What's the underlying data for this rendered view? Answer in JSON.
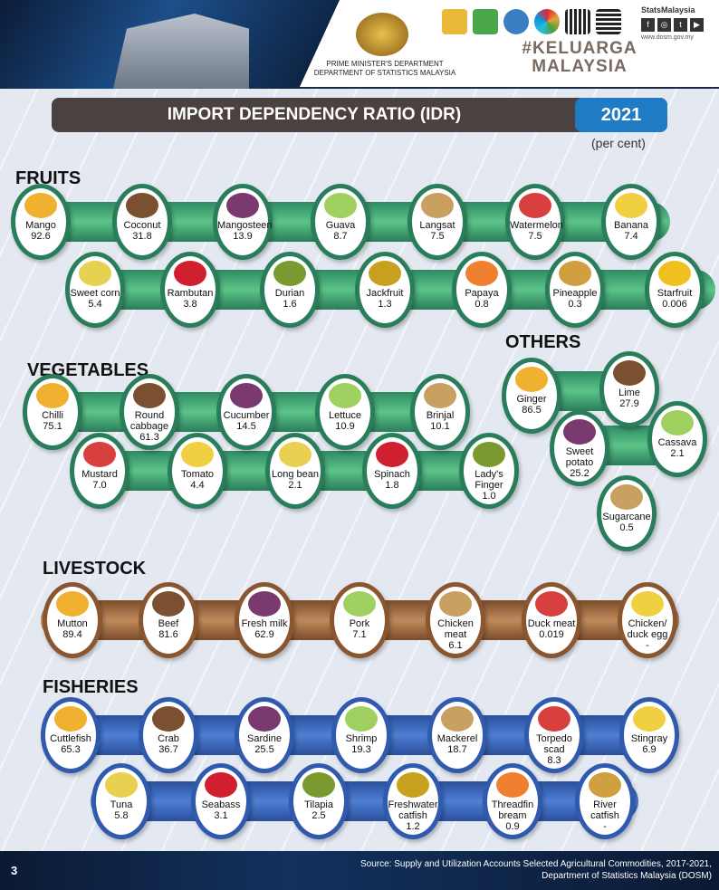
{
  "header": {
    "dept_line1": "PRIME MINISTER'S DEPARTMENT",
    "dept_line2": "DEPARTMENT OF STATISTICS MALAYSIA",
    "stats_brand": "StatsMalaysia",
    "website": "www.dosm.gov.my",
    "campaign": "#KELUARGA MALAYSIA"
  },
  "title": "IMPORT DEPENDENCY RATIO (IDR)",
  "year": "2021",
  "unit": "(per cent)",
  "sections": {
    "fruits": {
      "title": "FRUITS",
      "items": [
        {
          "name": "Mango",
          "value": "92.6"
        },
        {
          "name": "Coconut",
          "value": "31.8"
        },
        {
          "name": "Mangosteen",
          "value": "13.9"
        },
        {
          "name": "Guava",
          "value": "8.7"
        },
        {
          "name": "Langsat",
          "value": "7.5"
        },
        {
          "name": "Watermelon",
          "value": "7.5"
        },
        {
          "name": "Banana",
          "value": "7.4"
        },
        {
          "name": "Sweet corn",
          "value": "5.4"
        },
        {
          "name": "Rambutan",
          "value": "3.8"
        },
        {
          "name": "Durian",
          "value": "1.6"
        },
        {
          "name": "Jackfruit",
          "value": "1.3"
        },
        {
          "name": "Papaya",
          "value": "0.8"
        },
        {
          "name": "Pineapple",
          "value": "0.3"
        },
        {
          "name": "Starfruit",
          "value": "0.006"
        }
      ]
    },
    "vegetables": {
      "title": "VEGETABLES",
      "items": [
        {
          "name": "Chilli",
          "value": "75.1"
        },
        {
          "name": "Round cabbage",
          "value": "61.3"
        },
        {
          "name": "Cucumber",
          "value": "14.5"
        },
        {
          "name": "Lettuce",
          "value": "10.9"
        },
        {
          "name": "Brinjal",
          "value": "10.1"
        },
        {
          "name": "Mustard",
          "value": "7.0"
        },
        {
          "name": "Tomato",
          "value": "4.4"
        },
        {
          "name": "Long bean",
          "value": "2.1"
        },
        {
          "name": "Spinach",
          "value": "1.8"
        },
        {
          "name": "Lady's Finger",
          "value": "1.0"
        }
      ]
    },
    "others": {
      "title": "OTHERS",
      "items": [
        {
          "name": "Ginger",
          "value": "86.5"
        },
        {
          "name": "Lime",
          "value": "27.9"
        },
        {
          "name": "Sweet potato",
          "value": "25.2"
        },
        {
          "name": "Cassava",
          "value": "2.1"
        },
        {
          "name": "Sugarcane",
          "value": "0.5"
        }
      ]
    },
    "livestock": {
      "title": "LIVESTOCK",
      "items": [
        {
          "name": "Mutton",
          "value": "89.4"
        },
        {
          "name": "Beef",
          "value": "81.6"
        },
        {
          "name": "Fresh milk",
          "value": "62.9"
        },
        {
          "name": "Pork",
          "value": "7.1"
        },
        {
          "name": "Chicken meat",
          "value": "6.1"
        },
        {
          "name": "Duck meat",
          "value": "0.019"
        },
        {
          "name": "Chicken/ duck egg",
          "value": "-"
        }
      ]
    },
    "fisheries": {
      "title": "FISHERIES",
      "items": [
        {
          "name": "Cuttlefish",
          "value": "65.3"
        },
        {
          "name": "Crab",
          "value": "36.7"
        },
        {
          "name": "Sardine",
          "value": "25.5"
        },
        {
          "name": "Shrimp",
          "value": "19.3"
        },
        {
          "name": "Mackerel",
          "value": "18.7"
        },
        {
          "name": "Torpedo scad",
          "value": "8.3"
        },
        {
          "name": "Stingray",
          "value": "6.9"
        },
        {
          "name": "Tuna",
          "value": "5.8"
        },
        {
          "name": "Seabass",
          "value": "3.1"
        },
        {
          "name": "Tilapia",
          "value": "2.5"
        },
        {
          "name": "Freshwater catfish",
          "value": "1.2"
        },
        {
          "name": "Threadfin bream",
          "value": "0.9"
        },
        {
          "name": "River catfish",
          "value": "-"
        }
      ]
    }
  },
  "colors": {
    "fruits": "#2a7d5a",
    "livestock": "#8a5630",
    "fisheries": "#2f5aae",
    "year": "#1f7bc4",
    "title_bar": "#4a4140"
  },
  "footer": {
    "page": "3",
    "source_line1": "Source: Supply and Utilization Accounts Selected Agricultural Commodities, 2017-2021,",
    "source_line2": "Department of Statistics Malaysia (DOSM)"
  }
}
